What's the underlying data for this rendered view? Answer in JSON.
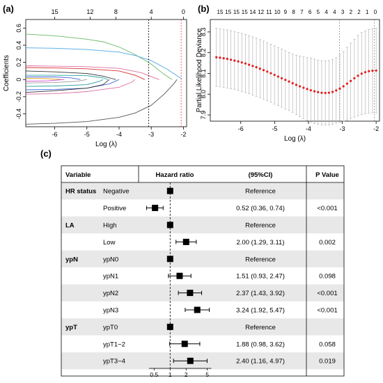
{
  "panels": {
    "a": "(a)",
    "b": "(b)",
    "c": "(c)"
  },
  "chart_data": [
    {
      "id": "a",
      "type": "line",
      "xlabel": "Log (λ)",
      "ylabel": "Coefficients",
      "xlim": [
        -6.9,
        -1.9
      ],
      "ylim": [
        -0.55,
        0.7
      ],
      "x_ticks": [
        -6,
        -5,
        -4,
        -3,
        -2
      ],
      "y_ticks": [
        -0.4,
        -0.2,
        0.0,
        0.2,
        0.4,
        0.6
      ],
      "top_ticks": [
        {
          "x": -6.0,
          "label": "15"
        },
        {
          "x": -4.9,
          "label": "12"
        },
        {
          "x": -4.1,
          "label": "8"
        },
        {
          "x": -3.0,
          "label": "4"
        },
        {
          "x": -2.0,
          "label": "0"
        }
      ],
      "vlines": [
        {
          "x": -3.08,
          "style": "dotted",
          "color": "#000000"
        },
        {
          "x": -2.07,
          "style": "dotted",
          "color": "#e04040"
        }
      ],
      "series": [
        {
          "color": "#66bb66",
          "points": [
            [
              -6.9,
              0.53
            ],
            [
              -6,
              0.51
            ],
            [
              -5,
              0.47
            ],
            [
              -4.5,
              0.44
            ],
            [
              -4,
              0.38
            ],
            [
              -3.5,
              0.29
            ],
            [
              -3,
              0.18
            ],
            [
              -2.6,
              0.06
            ],
            [
              -2.35,
              0
            ]
          ]
        },
        {
          "color": "#4da6e8",
          "points": [
            [
              -6.9,
              0.37
            ],
            [
              -6,
              0.365
            ],
            [
              -5,
              0.35
            ],
            [
              -4,
              0.32
            ],
            [
              -3.5,
              0.28
            ],
            [
              -3,
              0.22
            ],
            [
              -2.5,
              0.12
            ],
            [
              -2.1,
              0.02
            ],
            [
              -2.05,
              0
            ]
          ]
        },
        {
          "color": "#e06c9f",
          "points": [
            [
              -6.9,
              0.16
            ],
            [
              -6,
              0.155
            ],
            [
              -5,
              0.15
            ],
            [
              -4,
              0.13
            ],
            [
              -3.3,
              0.08
            ],
            [
              -2.9,
              0.02
            ],
            [
              -2.75,
              0
            ]
          ]
        },
        {
          "color": "#d93030",
          "points": [
            [
              -6.9,
              0.14
            ],
            [
              -6,
              0.135
            ],
            [
              -5,
              0.125
            ],
            [
              -4,
              0.1
            ],
            [
              -3.5,
              0.05
            ],
            [
              -3.2,
              0
            ]
          ]
        },
        {
          "color": "#333333",
          "points": [
            [
              -6.9,
              0.1
            ],
            [
              -6,
              0.09
            ],
            [
              -5,
              0.07
            ],
            [
              -4.5,
              0.04
            ],
            [
              -4.2,
              0.01
            ],
            [
              -4.1,
              0
            ]
          ]
        },
        {
          "color": "#2aa0a0",
          "points": [
            [
              -6.9,
              0.05
            ],
            [
              -6,
              0.05
            ],
            [
              -5,
              0.045
            ],
            [
              -4.5,
              0.02
            ],
            [
              -4.35,
              0
            ]
          ]
        },
        {
          "color": "#4466dd",
          "points": [
            [
              -6.9,
              0.03
            ],
            [
              -6,
              0.03
            ],
            [
              -5.5,
              0.02
            ],
            [
              -5.2,
              0
            ]
          ]
        },
        {
          "color": "#e0a020",
          "points": [
            [
              -6.9,
              0.015
            ],
            [
              -6.2,
              0.01
            ],
            [
              -5.8,
              0
            ]
          ]
        },
        {
          "color": "#cc44cc",
          "points": [
            [
              -6.9,
              -0.02
            ],
            [
              -6.2,
              -0.015
            ],
            [
              -5.7,
              0
            ]
          ]
        },
        {
          "color": "#999999",
          "points": [
            [
              -6.9,
              -0.04
            ],
            [
              -6,
              -0.035
            ],
            [
              -5.3,
              -0.02
            ],
            [
              -5,
              0
            ]
          ]
        },
        {
          "color": "#2aa0a0",
          "points": [
            [
              -6.9,
              -0.08
            ],
            [
              -6,
              -0.075
            ],
            [
              -5,
              -0.06
            ],
            [
              -4.6,
              -0.02
            ],
            [
              -4.5,
              0
            ]
          ]
        },
        {
          "color": "#4466dd",
          "points": [
            [
              -6.9,
              -0.12
            ],
            [
              -6,
              -0.115
            ],
            [
              -5,
              -0.1
            ],
            [
              -4.3,
              -0.05
            ],
            [
              -4,
              0
            ]
          ]
        },
        {
          "color": "#333333",
          "points": [
            [
              -6.9,
              -0.15
            ],
            [
              -6,
              -0.13
            ],
            [
              -5,
              -0.1
            ],
            [
              -4.5,
              -0.06
            ],
            [
              -4.3,
              0
            ]
          ]
        },
        {
          "color": "#e06c9f",
          "points": [
            [
              -6.9,
              -0.17
            ],
            [
              -6,
              -0.165
            ],
            [
              -5,
              -0.14
            ],
            [
              -4,
              -0.09
            ],
            [
              -3.6,
              -0.03
            ],
            [
              -3.5,
              0
            ]
          ]
        },
        {
          "color": "#555555",
          "points": [
            [
              -6.9,
              -0.52
            ],
            [
              -6,
              -0.51
            ],
            [
              -5,
              -0.49
            ],
            [
              -4,
              -0.44
            ],
            [
              -3.5,
              -0.39
            ],
            [
              -3,
              -0.3
            ],
            [
              -2.6,
              -0.17
            ],
            [
              -2.3,
              -0.05
            ],
            [
              -2.2,
              0
            ]
          ]
        }
      ]
    },
    {
      "id": "b",
      "type": "scatter",
      "xlabel": "Log (λ)",
      "ylabel": "Partial Likelihood Deviance",
      "xlim": [
        -6.9,
        -1.9
      ],
      "ylim": [
        7.87,
        8.36
      ],
      "x_ticks": [
        -6,
        -5,
        -4,
        -3,
        -2
      ],
      "y_ticks": [
        7.9,
        8.0,
        8.1,
        8.2,
        8.3
      ],
      "top_labels": [
        "15",
        "15",
        "15",
        "15",
        "14",
        "12",
        "11",
        "10",
        "9",
        "8",
        "7",
        "6",
        "5",
        "4",
        "4",
        "3",
        "2",
        "2",
        "1",
        "0"
      ],
      "vlines": [
        {
          "x": -3.08,
          "style": "dotted"
        },
        {
          "x": -2.05,
          "style": "dotted"
        }
      ],
      "points": {
        "x_start": -6.72,
        "x_end": -2.0,
        "count": 45,
        "y": [
          8.178,
          8.176,
          8.173,
          8.17,
          8.166,
          8.162,
          8.158,
          8.153,
          8.148,
          8.142,
          8.136,
          8.13,
          8.123,
          8.116,
          8.109,
          8.101,
          8.093,
          8.085,
          8.077,
          8.069,
          8.061,
          8.053,
          8.045,
          8.038,
          8.031,
          8.025,
          8.019,
          8.014,
          8.01,
          8.007,
          8.006,
          8.007,
          8.011,
          8.018,
          8.027,
          8.038,
          8.051,
          8.064,
          8.077,
          8.089,
          8.099,
          8.106,
          8.111,
          8.113,
          8.114
        ],
        "err": [
          0.14,
          0.14,
          0.14,
          0.14,
          0.14,
          0.14,
          0.14,
          0.14,
          0.14,
          0.14,
          0.14,
          0.14,
          0.14,
          0.14,
          0.14,
          0.14,
          0.14,
          0.14,
          0.14,
          0.14,
          0.14,
          0.14,
          0.143,
          0.146,
          0.149,
          0.152,
          0.155,
          0.155,
          0.155,
          0.155,
          0.155,
          0.155,
          0.156,
          0.158,
          0.162,
          0.168,
          0.175,
          0.182,
          0.188,
          0.194,
          0.198,
          0.2,
          0.202,
          0.203,
          0.204
        ]
      }
    },
    {
      "id": "c",
      "type": "table",
      "headers": {
        "variable": "Variable",
        "hr": "Hazard ratio",
        "ci": "(95%CI)",
        "p": "P Value"
      },
      "x_ticks": [
        {
          "value": 0.5,
          "label": "0.5"
        },
        {
          "value": 1,
          "label": "1"
        },
        {
          "value": 2,
          "label": "2"
        },
        {
          "value": 5,
          "label": "5"
        }
      ],
      "rows": [
        {
          "group": "HR status",
          "level": "Negative",
          "hr": 1.0,
          "lo": null,
          "hi": null,
          "ci": "Reference",
          "p": ""
        },
        {
          "group": "",
          "level": "Positive",
          "hr": 0.52,
          "lo": 0.36,
          "hi": 0.74,
          "ci": "0.52 (0.36, 0.74)",
          "p": "<0.001"
        },
        {
          "group": "LA",
          "level": "High",
          "hr": 1.0,
          "lo": null,
          "hi": null,
          "ci": "Reference",
          "p": ""
        },
        {
          "group": "",
          "level": "Low",
          "hr": 2.0,
          "lo": 1.29,
          "hi": 3.11,
          "ci": "2.00 (1.29, 3.11)",
          "p": "0.002"
        },
        {
          "group": "ypN",
          "level": "ypN0",
          "hr": 1.0,
          "lo": null,
          "hi": null,
          "ci": "Reference",
          "p": ""
        },
        {
          "group": "",
          "level": "ypN1",
          "hr": 1.51,
          "lo": 0.93,
          "hi": 2.47,
          "ci": "1.51 (0.93, 2.47)",
          "p": "0.098"
        },
        {
          "group": "",
          "level": "ypN2",
          "hr": 2.37,
          "lo": 1.43,
          "hi": 3.92,
          "ci": "2.37 (1.43, 3.92)",
          "p": "<0.001"
        },
        {
          "group": "",
          "level": "ypN3",
          "hr": 3.24,
          "lo": 1.92,
          "hi": 5.47,
          "ci": "3.24 (1.92, 5.47)",
          "p": "<0.001"
        },
        {
          "group": "ypT",
          "level": "ypT0",
          "hr": 1.0,
          "lo": null,
          "hi": null,
          "ci": "Reference",
          "p": ""
        },
        {
          "group": "",
          "level": "ypT1−2",
          "hr": 1.88,
          "lo": 0.98,
          "hi": 3.62,
          "ci": "1.88 (0.98, 3.62)",
          "p": "0.058"
        },
        {
          "group": "",
          "level": "ypT3−4",
          "hr": 2.4,
          "lo": 1.16,
          "hi": 4.97,
          "ci": "2.40 (1.16, 4.97)",
          "p": "0.019"
        }
      ]
    }
  ]
}
